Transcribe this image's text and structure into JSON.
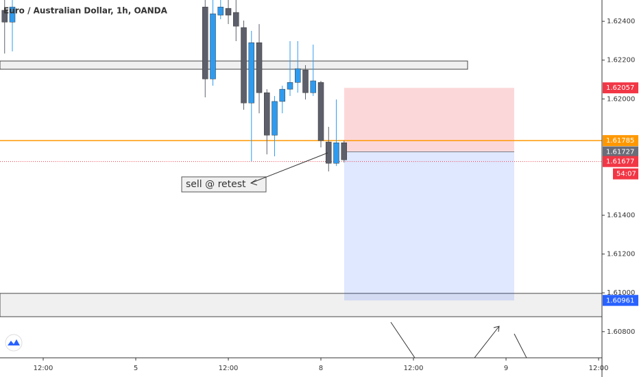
{
  "chart_data": {
    "type": "candlestick",
    "title": "Euro / Australian Dollar, 1h, OANDA",
    "annotation": "sell @ retest",
    "countdown": "54:07",
    "up_color": "#2f9bef",
    "down_color": "#5d606b",
    "x": [
      7,
      8,
      33,
      34,
      35,
      36,
      37,
      38,
      39,
      40,
      41,
      42,
      43,
      44,
      45,
      46,
      47,
      48,
      49,
      50,
      51
    ],
    "open": [
      1.62457,
      1.62396,
      1.62474,
      1.62103,
      1.62432,
      1.62467,
      1.62446,
      1.62368,
      1.61979,
      1.6229,
      1.62032,
      1.61813,
      1.61987,
      1.6205,
      1.62085,
      1.62149,
      1.62032,
      1.62085,
      1.61778,
      1.61668,
      1.61774
    ],
    "high": [
      1.6251,
      1.6251,
      1.6251,
      1.6251,
      1.6251,
      1.6251,
      1.6251,
      1.62404,
      1.62351,
      1.62386,
      1.6205,
      1.62015,
      1.62068,
      1.62298,
      1.62298,
      1.62174,
      1.6228,
      1.62093,
      1.61856,
      1.61997,
      1.61785
    ],
    "low": [
      1.62234,
      1.62245,
      1.62008,
      1.62068,
      1.62411,
      1.62386,
      1.62298,
      1.61944,
      1.61679,
      1.61926,
      1.61714,
      1.61704,
      1.61926,
      1.62015,
      1.62032,
      1.61997,
      1.62015,
      1.6175,
      1.61626,
      1.61654,
      1.61672
    ],
    "close": [
      1.62396,
      1.62474,
      1.62103,
      1.62439,
      1.62474,
      1.62432,
      1.62375,
      1.61979,
      1.6229,
      1.62032,
      1.61813,
      1.61987,
      1.6205,
      1.62085,
      1.62156,
      1.62032,
      1.62093,
      1.61785,
      1.61668,
      1.61774,
      1.61686
    ],
    "xlim": [
      6.4,
      84.44
    ],
    "xticks": [
      {
        "value": 12,
        "label": "12:00"
      },
      {
        "value": 24,
        "label": "5"
      },
      {
        "value": 36,
        "label": "12:00"
      },
      {
        "value": 48,
        "label": "8"
      },
      {
        "value": 60,
        "label": "12:00"
      },
      {
        "value": 72,
        "label": "9"
      },
      {
        "value": 84,
        "label": "12:00"
      }
    ],
    "ylim": [
      1.60665,
      1.6251
    ],
    "yticks": [
      {
        "value": 1.624,
        "label": "1.62400"
      },
      {
        "value": 1.622,
        "label": "1.62200"
      },
      {
        "value": 1.62,
        "label": "1.62000"
      },
      {
        "value": 1.614,
        "label": "1.61400"
      },
      {
        "value": 1.612,
        "label": "1.61200"
      },
      {
        "value": 1.61,
        "label": "1.61000"
      },
      {
        "value": 1.608,
        "label": "1.60800"
      }
    ],
    "markers": [
      {
        "value": 1.62057,
        "color": "#f23645"
      },
      {
        "value": 1.61785,
        "color": "#ff9800"
      },
      {
        "value": 1.61727,
        "color": "#6a6d78"
      },
      {
        "value": 1.61677,
        "color": "#f23645"
      },
      {
        "value": 1.60961,
        "color": "#2962ff"
      }
    ]
  }
}
